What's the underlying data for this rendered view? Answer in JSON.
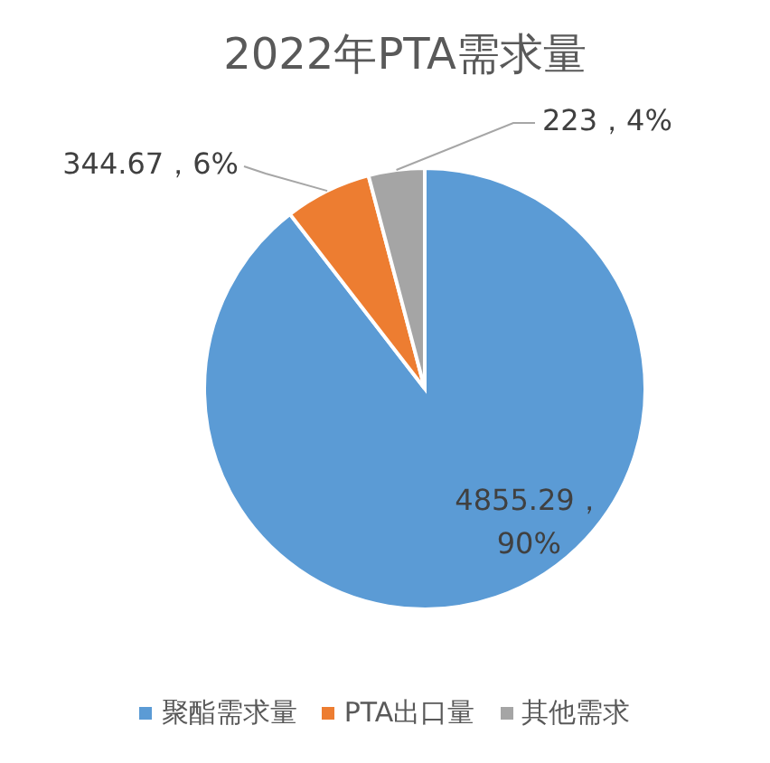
{
  "chart_data": {
    "type": "pie",
    "title": "2022年PTA需求量",
    "categories": [
      "聚酯需求量",
      "PTA出口量",
      "其他需求"
    ],
    "values": [
      4855.29,
      344.67,
      223
    ],
    "colors": [
      "#5b9bd5",
      "#ed7d31",
      "#a5a5a5"
    ],
    "value_labels": [
      "4855.29，90%",
      "344.67，6%",
      "223，4%"
    ],
    "legend": "bottom"
  }
}
